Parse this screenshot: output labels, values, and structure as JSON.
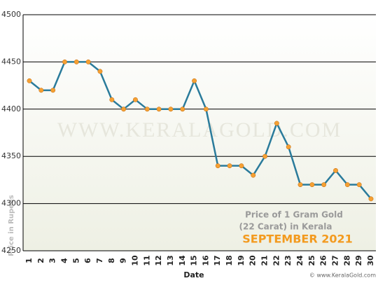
{
  "chart_data": {
    "type": "line",
    "watermark": "WWW.KERALAGOLD.COM",
    "annotation_lines": [
      "Price of 1 Gram Gold",
      "(22 Carat) in Kerala"
    ],
    "annotation_title": "SEPTEMBER 2021",
    "x_label": "Date",
    "y_label": "Price in Rupees",
    "footer": "© www.KeralaGold.com",
    "categories": [
      "1",
      "2",
      "3",
      "4",
      "5",
      "6",
      "7",
      "8",
      "9",
      "10",
      "11",
      "12",
      "13",
      "14",
      "15",
      "16",
      "17",
      "18",
      "19",
      "20",
      "21",
      "22",
      "23",
      "24",
      "25",
      "26",
      "27",
      "28",
      "29",
      "30"
    ],
    "series": [
      {
        "name": "Price",
        "color": "#2a7b9b",
        "marker_color": "#f5a033",
        "values": [
          4430,
          4420,
          4420,
          4450,
          4450,
          4450,
          4440,
          4410,
          4400,
          4410,
          4400,
          4400,
          4400,
          4400,
          4430,
          4400,
          4340,
          4340,
          4340,
          4330,
          4350,
          4385,
          4360,
          4320,
          4320,
          4320,
          4335,
          4320,
          4320,
          4305
        ]
      }
    ],
    "ylim": [
      4250,
      4500
    ],
    "yticks": [
      4250,
      4300,
      4350,
      4400,
      4450,
      4500
    ],
    "grid": true
  }
}
